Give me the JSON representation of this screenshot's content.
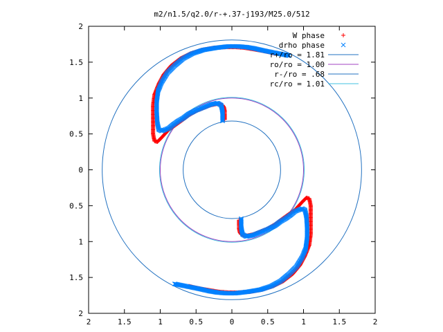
{
  "chart_data": {
    "type": "scatter",
    "title": "m2/n1.5/q2.0/r-+.37-j193/M25.0/512",
    "xlabel": "",
    "ylabel": "",
    "xlim": [
      -2,
      2
    ],
    "ylim": [
      -2,
      2
    ],
    "x_ticks": [
      -2,
      -1.5,
      -1,
      -0.5,
      0,
      0.5,
      1,
      1.5,
      2
    ],
    "y_ticks": [
      -2,
      -1.5,
      -1,
      -0.5,
      0,
      0.5,
      1,
      1.5,
      2
    ],
    "x_tick_labels": [
      "2",
      "1.5",
      "1",
      "0.5",
      "0",
      "0.5",
      "1",
      "1.5",
      "2"
    ],
    "y_tick_labels": [
      "2",
      "1.5",
      "1",
      "0.5",
      "0",
      "0.5",
      "1",
      "1.5",
      "2"
    ],
    "grid": false,
    "legend_position": "top-right",
    "series": [
      {
        "name": "W phase",
        "kind": "points",
        "marker": "plus",
        "color": "#ff0000",
        "symmetry": "point-reflection-about-origin",
        "points": [
          [
            -0.1,
            0.7
          ],
          [
            -0.1,
            0.76
          ],
          [
            -0.1,
            0.82
          ],
          [
            -0.11,
            0.87
          ],
          [
            -0.13,
            0.9
          ],
          [
            -0.2,
            0.92
          ],
          [
            -0.3,
            0.9
          ],
          [
            -0.4,
            0.86
          ],
          [
            -0.5,
            0.82
          ],
          [
            -0.6,
            0.76
          ],
          [
            -0.68,
            0.7
          ],
          [
            -0.75,
            0.65
          ],
          [
            -0.82,
            0.6
          ],
          [
            -0.88,
            0.56
          ],
          [
            -0.98,
            0.45
          ],
          [
            -1.04,
            0.39
          ],
          [
            -1.08,
            0.4
          ],
          [
            -1.1,
            0.5
          ],
          [
            -1.1,
            0.7
          ],
          [
            -1.1,
            0.9
          ],
          [
            -1.08,
            1.05
          ],
          [
            -1.02,
            1.2
          ],
          [
            -0.95,
            1.33
          ],
          [
            -0.85,
            1.45
          ],
          [
            -0.72,
            1.55
          ],
          [
            -0.58,
            1.62
          ],
          [
            -0.42,
            1.67
          ],
          [
            -0.25,
            1.7
          ],
          [
            -0.08,
            1.71
          ],
          [
            0.05,
            1.71
          ],
          [
            0.18,
            1.7
          ],
          [
            0.3,
            1.68
          ],
          [
            0.42,
            1.66
          ],
          [
            0.52,
            1.64
          ],
          [
            0.6,
            1.62
          ]
        ]
      },
      {
        "name": "drho phase",
        "kind": "points",
        "marker": "cross",
        "color": "#0080ff",
        "symmetry": "point-reflection-about-origin",
        "points": [
          [
            -0.13,
            0.68
          ],
          [
            -0.13,
            0.74
          ],
          [
            -0.13,
            0.8
          ],
          [
            -0.14,
            0.86
          ],
          [
            -0.15,
            0.9
          ],
          [
            -0.2,
            0.93
          ],
          [
            -0.3,
            0.91
          ],
          [
            -0.4,
            0.87
          ],
          [
            -0.5,
            0.83
          ],
          [
            -0.6,
            0.78
          ],
          [
            -0.68,
            0.72
          ],
          [
            -0.75,
            0.68
          ],
          [
            -0.82,
            0.63
          ],
          [
            -0.88,
            0.58
          ],
          [
            -0.98,
            0.54
          ],
          [
            -1.02,
            0.56
          ],
          [
            -1.04,
            0.65
          ],
          [
            -1.05,
            0.8
          ],
          [
            -1.05,
            0.95
          ],
          [
            -1.03,
            1.1
          ],
          [
            -0.98,
            1.22
          ],
          [
            -0.9,
            1.35
          ],
          [
            -0.8,
            1.45
          ],
          [
            -0.68,
            1.55
          ],
          [
            -0.55,
            1.62
          ],
          [
            -0.4,
            1.67
          ],
          [
            -0.22,
            1.7
          ],
          [
            -0.05,
            1.72
          ],
          [
            0.08,
            1.72
          ],
          [
            0.2,
            1.71
          ],
          [
            0.32,
            1.69
          ],
          [
            0.45,
            1.66
          ],
          [
            0.55,
            1.64
          ],
          [
            0.65,
            1.62
          ],
          [
            0.75,
            1.6
          ],
          [
            0.8,
            1.59
          ]
        ]
      },
      {
        "name": "r+/ro = 1.81",
        "kind": "circle",
        "radius": 1.81,
        "color": "#2070c0"
      },
      {
        "name": "ro/ro = 1.00",
        "kind": "circle",
        "radius": 1.0,
        "color": "#a040c0"
      },
      {
        "name": "r-/ro = .68",
        "kind": "circle",
        "radius": 0.68,
        "color": "#2070c0"
      },
      {
        "name": "rc/ro = 1.01",
        "kind": "circle",
        "radius": 1.01,
        "color": "#40c0e0"
      }
    ]
  }
}
